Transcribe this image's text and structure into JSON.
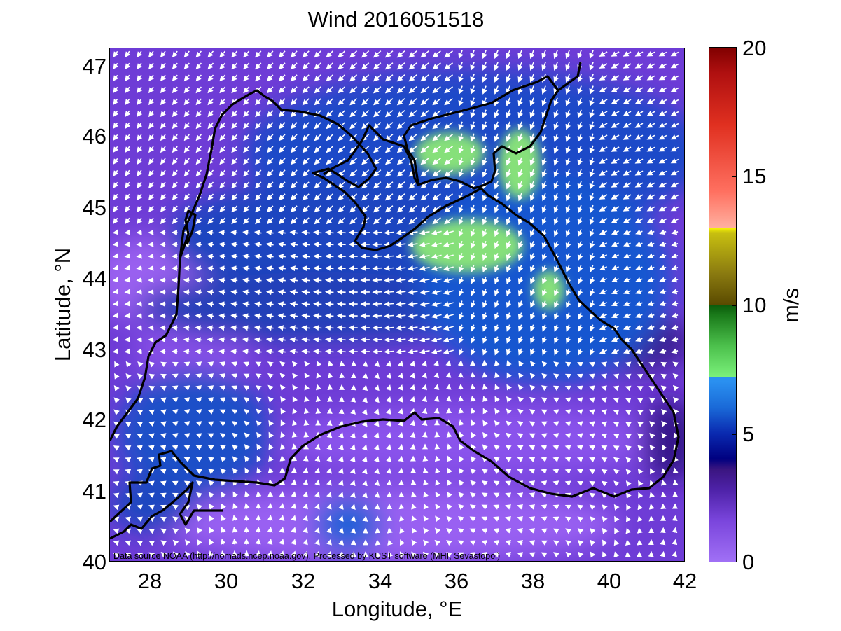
{
  "title": "Wind 2016051518",
  "xlabel": "Longitude, °E",
  "ylabel": "Latitude, °N",
  "x_ticks": [
    "28",
    "30",
    "32",
    "34",
    "36",
    "38",
    "40",
    "42"
  ],
  "y_ticks": [
    "47",
    "46",
    "45",
    "44",
    "43",
    "42",
    "41",
    "40"
  ],
  "colorbar": {
    "label": "m/s",
    "ticks": [
      "20",
      "15",
      "10",
      "5",
      "0"
    ],
    "range": [
      0,
      20
    ]
  },
  "credit": "Data source NOAA (http://nomads.ncep.noaa.gov). Processed by KUST software (MHI, Sevastopol)",
  "map": {
    "lon_range": [
      27,
      42
    ],
    "lat_range": [
      40,
      47.25
    ]
  }
}
